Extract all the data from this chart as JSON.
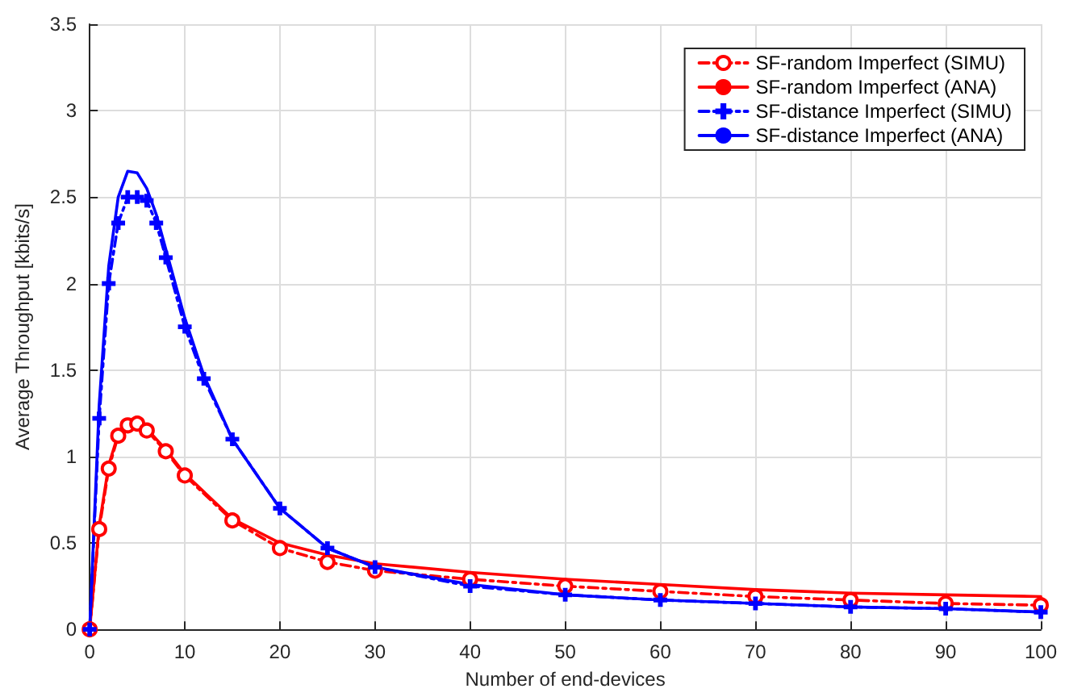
{
  "chart_data": {
    "type": "line",
    "xlabel": "Number of end-devices",
    "ylabel": "Average Throughput [kbits/s]",
    "xlim": [
      0,
      100
    ],
    "ylim": [
      0,
      3.5
    ],
    "xticks": [
      0,
      10,
      20,
      30,
      40,
      50,
      60,
      70,
      80,
      90,
      100
    ],
    "yticks": [
      0,
      0.5,
      1,
      1.5,
      2,
      2.5,
      3,
      3.5
    ],
    "grid": true,
    "legend": "top right",
    "series": [
      {
        "name": "SF-random Imperfect (SIMU)",
        "color": "#ff0000",
        "marker": "circle",
        "line_style": "dashed",
        "x": [
          0,
          1,
          2,
          3,
          4,
          5,
          6,
          8,
          10,
          15,
          20,
          25,
          30,
          40,
          50,
          60,
          70,
          80,
          90,
          100
        ],
        "values": [
          0,
          0.58,
          0.93,
          1.12,
          1.18,
          1.19,
          1.15,
          1.03,
          0.89,
          0.63,
          0.47,
          0.39,
          0.34,
          0.29,
          0.25,
          0.22,
          0.19,
          0.17,
          0.15,
          0.14
        ]
      },
      {
        "name": "SF-random Imperfect (ANA)",
        "color": "#ff0000",
        "marker": "none",
        "line_style": "solid",
        "x": [
          0,
          1,
          2,
          3,
          4,
          5,
          6,
          8,
          10,
          15,
          20,
          25,
          30,
          40,
          50,
          60,
          70,
          80,
          90,
          100
        ],
        "values": [
          0,
          0.6,
          0.95,
          1.13,
          1.2,
          1.2,
          1.16,
          1.04,
          0.9,
          0.64,
          0.5,
          0.43,
          0.38,
          0.33,
          0.29,
          0.26,
          0.23,
          0.21,
          0.2,
          0.19
        ]
      },
      {
        "name": "SF-distance Imperfect (SIMU)",
        "color": "#0000ff",
        "marker": "cross",
        "line_style": "dashed",
        "x": [
          0,
          1,
          2,
          3,
          4,
          5,
          6,
          7,
          8,
          10,
          12,
          15,
          20,
          25,
          30,
          40,
          50,
          60,
          70,
          80,
          90,
          100
        ],
        "values": [
          0,
          1.22,
          2.0,
          2.35,
          2.5,
          2.5,
          2.48,
          2.35,
          2.15,
          1.75,
          1.45,
          1.1,
          0.7,
          0.47,
          0.36,
          0.25,
          0.2,
          0.17,
          0.15,
          0.13,
          0.12,
          0.1
        ]
      },
      {
        "name": "SF-distance Imperfect (ANA)",
        "color": "#0000ff",
        "marker": "none",
        "line_style": "solid",
        "x": [
          0,
          1,
          2,
          3,
          4,
          5,
          6,
          7,
          8,
          10,
          12,
          15,
          20,
          25,
          30,
          40,
          50,
          60,
          70,
          80,
          90,
          100
        ],
        "values": [
          0,
          1.3,
          2.1,
          2.5,
          2.65,
          2.64,
          2.55,
          2.4,
          2.2,
          1.8,
          1.47,
          1.1,
          0.7,
          0.47,
          0.36,
          0.26,
          0.2,
          0.17,
          0.15,
          0.13,
          0.12,
          0.1
        ]
      }
    ]
  }
}
